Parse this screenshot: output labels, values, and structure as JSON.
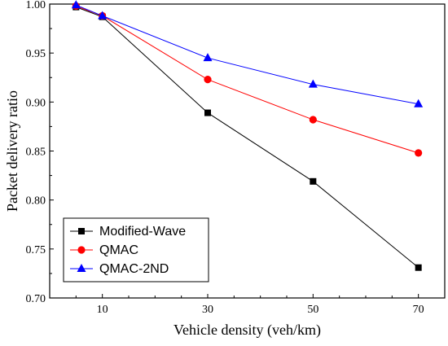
{
  "chart_data": {
    "type": "line",
    "title": "",
    "xlabel": "Vehicle density (veh/km)",
    "ylabel": "Packet delivery ratio",
    "x": [
      5,
      10,
      30,
      50,
      70
    ],
    "xticks": [
      10,
      30,
      50,
      70
    ],
    "xlim": [
      0,
      75
    ],
    "yticks": [
      0.7,
      0.75,
      0.8,
      0.85,
      0.9,
      0.95,
      1.0
    ],
    "ylim": [
      0.7,
      1.0
    ],
    "grid": false,
    "legend_position": "bottom-left",
    "series": [
      {
        "name": "Modified-Wave",
        "marker": "square",
        "color": "#000000",
        "values": [
          0.997,
          0.987,
          0.889,
          0.819,
          0.731
        ]
      },
      {
        "name": "QMAC",
        "marker": "circle",
        "color": "#ff0000",
        "values": [
          0.998,
          0.988,
          0.923,
          0.882,
          0.848
        ]
      },
      {
        "name": "QMAC-2ND",
        "marker": "triangle",
        "color": "#0000ff",
        "values": [
          0.999,
          0.988,
          0.945,
          0.918,
          0.898
        ]
      }
    ]
  }
}
